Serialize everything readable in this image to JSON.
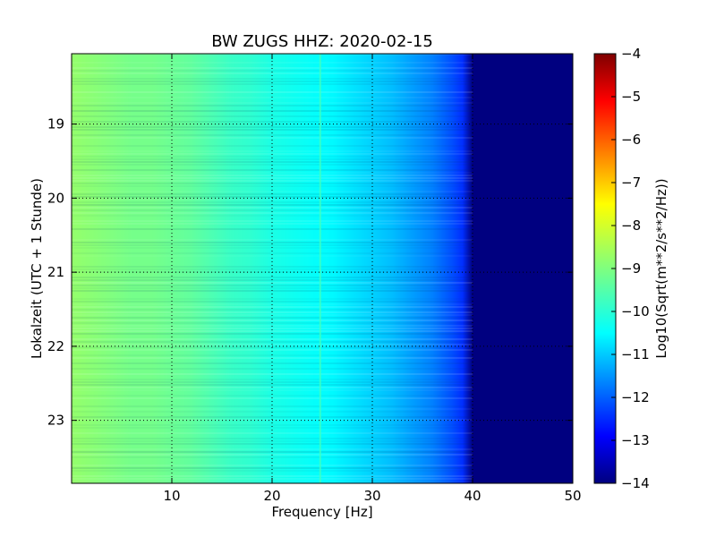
{
  "chart_data": {
    "type": "heatmap",
    "title": "BW ZUGS HHZ: 2020-02-15",
    "xlabel": "Frequency [Hz]",
    "ylabel": "Lokalzeit (UTC + 1 Stunde)",
    "xlim": [
      0,
      50
    ],
    "ylim": [
      18.05,
      23.85
    ],
    "x_ticks": [
      10,
      20,
      30,
      40,
      50
    ],
    "y_ticks": [
      19,
      20,
      21,
      22,
      23
    ],
    "y_axis_inverted": true,
    "grid": true,
    "colormap": "jet",
    "colorbar": {
      "label": "Log10(Sqrt(m**2/s**2/Hz))",
      "range": [
        -14,
        -4
      ],
      "ticks": [
        -4,
        -5,
        -6,
        -7,
        -8,
        -9,
        -10,
        -11,
        -12,
        -13,
        -14
      ]
    },
    "frequency_profile": {
      "frequency_hz": [
        0,
        2,
        4,
        6,
        8,
        10,
        12,
        14,
        16,
        18,
        20,
        22,
        24,
        26,
        28,
        30,
        32,
        34,
        36,
        38,
        39,
        40,
        42,
        44,
        46,
        48,
        50
      ],
      "log_level": [
        -8.8,
        -8.9,
        -9.0,
        -9.1,
        -9.1,
        -9.2,
        -9.3,
        -9.5,
        -9.7,
        -9.8,
        -10.0,
        -10.1,
        -10.2,
        -10.3,
        -10.5,
        -10.7,
        -10.9,
        -11.2,
        -11.5,
        -12.0,
        -12.3,
        -14.0,
        -14.0,
        -14.0,
        -14.0,
        -14.0,
        -14.0
      ]
    },
    "features": [
      {
        "type": "vertical_line",
        "frequency_hz": 24.8,
        "description": "narrow spectral line"
      },
      {
        "type": "band_edge",
        "frequency_hz": 40,
        "description": "abrupt drop to floor level"
      }
    ]
  }
}
